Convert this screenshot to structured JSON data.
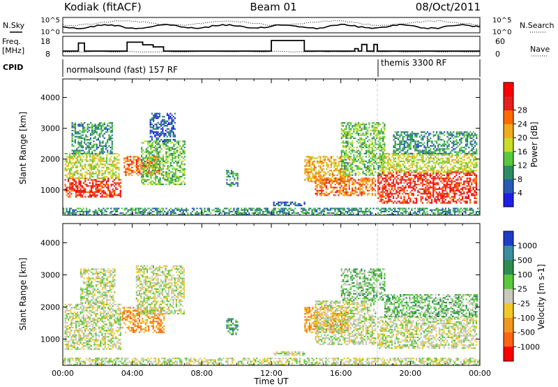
{
  "header": {
    "station": "Kodiak (fitACF)",
    "beam": "Beam 01",
    "date": "08/Oct/2011"
  },
  "noise_panel": {
    "left_label": "N.Sky",
    "right_label": "N.Search",
    "left_ticks": [
      "10^5",
      "10^0"
    ],
    "right_ticks": [
      "10^5",
      "10^0"
    ]
  },
  "freq_panel": {
    "left_label_1": "Freq.",
    "left_label_2": "[MHz]",
    "right_label": "Nave",
    "left_ticks": [
      "18",
      "8"
    ],
    "right_ticks": [
      "60",
      "0"
    ],
    "freq_mhz": [
      {
        "t0": 0.0,
        "t1": 0.9,
        "v": 10.3
      },
      {
        "t0": 0.9,
        "t1": 1.25,
        "v": 15.8
      },
      {
        "t0": 1.25,
        "t1": 3.7,
        "v": 10.3
      },
      {
        "t0": 3.7,
        "t1": 4.6,
        "v": 16.4
      },
      {
        "t0": 4.6,
        "t1": 5.2,
        "v": 14.6
      },
      {
        "t0": 5.2,
        "t1": 5.8,
        "v": 13.2
      },
      {
        "t0": 5.8,
        "t1": 12.0,
        "v": 10.3
      },
      {
        "t0": 12.0,
        "t1": 13.9,
        "v": 17.5
      },
      {
        "t0": 13.9,
        "t1": 16.8,
        "v": 10.3
      },
      {
        "t0": 16.8,
        "t1": 17.0,
        "v": 12.0
      },
      {
        "t0": 17.0,
        "t1": 17.2,
        "v": 10.3
      },
      {
        "t0": 17.2,
        "t1": 17.5,
        "v": 14.8
      },
      {
        "t0": 17.5,
        "t1": 17.9,
        "v": 10.3
      },
      {
        "t0": 17.9,
        "t1": 18.1,
        "v": 14.8
      },
      {
        "t0": 18.1,
        "t1": 24.0,
        "v": 10.3
      }
    ]
  },
  "cpid": {
    "label": "CPID",
    "mode1": "normalsound (fast) 157 RF",
    "mode2": "themis 3300 RF",
    "switch_time": 18.0
  },
  "chart_data": [
    {
      "type": "heatmap",
      "title": "",
      "xlabel": "",
      "ylabel": "Slant Range [km]",
      "xlim": [
        0,
        24
      ],
      "ylim": [
        180,
        4600
      ],
      "yticks": [
        "1000",
        "2000",
        "3000",
        "4000"
      ],
      "colorbar": {
        "label": "Power [dB]",
        "ticks": [
          "4",
          "8",
          "12",
          "16",
          "20",
          "24",
          "28"
        ],
        "colors": [
          "#1e1ee6",
          "#285ab4",
          "#2d8c64",
          "#5ac83c",
          "#c8dc28",
          "#f0aa1e",
          "#ff6a00",
          "#e61e1e",
          "#ff0000"
        ]
      },
      "regions": [
        {
          "t0": 0.1,
          "t1": 3.3,
          "r0": 800,
          "r1": 1400,
          "level": 7
        },
        {
          "t0": 0.1,
          "t1": 3.2,
          "r0": 1400,
          "r1": 2200,
          "level": 4
        },
        {
          "t0": 0.5,
          "t1": 2.8,
          "r0": 2200,
          "r1": 3200,
          "level": 2
        },
        {
          "t0": 3.5,
          "t1": 5.6,
          "r0": 1500,
          "r1": 2100,
          "level": 6
        },
        {
          "t0": 4.5,
          "t1": 7.0,
          "r0": 1200,
          "r1": 2600,
          "level": 3
        },
        {
          "t0": 5.0,
          "t1": 6.5,
          "r0": 2600,
          "r1": 3500,
          "level": 1
        },
        {
          "t0": 9.4,
          "t1": 10.1,
          "r0": 1150,
          "r1": 1650,
          "level": 2
        },
        {
          "t0": 12.1,
          "t1": 13.9,
          "r0": 480,
          "r1": 620,
          "level": 1
        },
        {
          "t0": 13.9,
          "t1": 16.5,
          "r0": 1300,
          "r1": 2100,
          "level": 5
        },
        {
          "t0": 14.5,
          "t1": 18.0,
          "r0": 850,
          "r1": 1400,
          "level": 6
        },
        {
          "t0": 16.0,
          "t1": 18.5,
          "r0": 1500,
          "r1": 3200,
          "level": 3
        },
        {
          "t0": 18.1,
          "t1": 23.8,
          "r0": 600,
          "r1": 1600,
          "level": 7
        },
        {
          "t0": 18.3,
          "t1": 23.8,
          "r0": 1600,
          "r1": 2200,
          "level": 4
        },
        {
          "t0": 19.0,
          "t1": 23.8,
          "r0": 2200,
          "r1": 2900,
          "level": 2
        },
        {
          "t0": 0.0,
          "t1": 24.0,
          "r0": 200,
          "r1": 420,
          "level": 2
        }
      ]
    },
    {
      "type": "heatmap",
      "title": "",
      "xlabel": "Time UT",
      "ylabel": "Slant Range [km]",
      "xlim": [
        0,
        24
      ],
      "ylim": [
        180,
        4600
      ],
      "xticks": [
        "00:00",
        "04:00",
        "08:00",
        "12:00",
        "16:00",
        "20:00",
        "00:00"
      ],
      "yticks": [
        "1000",
        "2000",
        "3000",
        "4000"
      ],
      "colorbar": {
        "label": "Velocity [m s-1]",
        "ticks": [
          "1000",
          "500",
          "100",
          "25",
          "-25",
          "-100",
          "-500",
          "-1000"
        ],
        "colors": [
          "#1e3cc8",
          "#3c8ca0",
          "#2d8c50",
          "#5ac83c",
          "#c8c8be",
          "#f0c828",
          "#f0961e",
          "#ff6414",
          "#ff0000"
        ]
      },
      "regions": [
        {
          "t0": 0.1,
          "t1": 3.3,
          "r0": 700,
          "r1": 2100,
          "level": 4
        },
        {
          "t0": 1.0,
          "t1": 3.0,
          "r0": 2100,
          "r1": 3200,
          "level": 4
        },
        {
          "t0": 3.4,
          "t1": 5.8,
          "r0": 1200,
          "r1": 2000,
          "level": 6
        },
        {
          "t0": 4.2,
          "t1": 7.0,
          "r0": 1800,
          "r1": 3300,
          "level": 4
        },
        {
          "t0": 9.4,
          "t1": 10.1,
          "r0": 1150,
          "r1": 1650,
          "level": 2
        },
        {
          "t0": 12.1,
          "t1": 13.9,
          "r0": 480,
          "r1": 620,
          "level": 4
        },
        {
          "t0": 13.9,
          "t1": 16.4,
          "r0": 1200,
          "r1": 2000,
          "level": 6
        },
        {
          "t0": 14.5,
          "t1": 18.0,
          "r0": 850,
          "r1": 2200,
          "level": 4
        },
        {
          "t0": 16.0,
          "t1": 18.5,
          "r0": 2200,
          "r1": 3200,
          "level": 3
        },
        {
          "t0": 18.1,
          "t1": 23.8,
          "r0": 700,
          "r1": 1700,
          "level": 4
        },
        {
          "t0": 18.5,
          "t1": 23.8,
          "r0": 1700,
          "r1": 2400,
          "level": 3
        },
        {
          "t0": 0.0,
          "t1": 24.0,
          "r0": 200,
          "r1": 420,
          "level": 4
        }
      ]
    }
  ]
}
